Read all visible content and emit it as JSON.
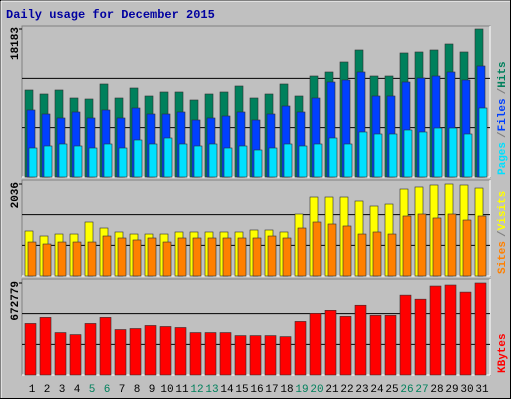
{
  "chart_data": [
    {
      "type": "bar",
      "title": "Daily usage for December 2015",
      "title_color": "#0000a0",
      "legend_separator": "/",
      "series": [
        {
          "name": "Hits",
          "color": "#00805c",
          "values": [
            10689,
            10197,
            10689,
            9706,
            9583,
            11426,
            9706,
            10934,
            9952,
            10443,
            10443,
            9460,
            10197,
            10443,
            11180,
            9706,
            10197,
            11426,
            9952,
            12409,
            12900,
            14129,
            15603,
            12409,
            12409,
            15235,
            15358,
            15603,
            16340,
            15358,
            18183
          ]
        },
        {
          "name": "Files",
          "color": "#0040ff",
          "values": [
            8232,
            7740,
            7249,
            7986,
            7249,
            8232,
            7249,
            8477,
            7740,
            7740,
            7986,
            7003,
            7249,
            7494,
            7986,
            7003,
            7740,
            8723,
            7986,
            9706,
            11672,
            11917,
            12900,
            9952,
            9952,
            11672,
            12163,
            12409,
            12900,
            11917,
            13637
          ]
        },
        {
          "name": "Pages",
          "color": "#00e0ff",
          "values": [
            3563,
            3809,
            4054,
            3809,
            3563,
            4054,
            3563,
            4546,
            4054,
            4792,
            4054,
            3809,
            4054,
            3563,
            3809,
            3317,
            3563,
            4054,
            3809,
            4054,
            4792,
            4054,
            5529,
            5283,
            5283,
            5774,
            5529,
            6020,
            6020,
            5283,
            8477
          ]
        }
      ],
      "ylim": [
        0,
        18183
      ],
      "yticks": [
        18183
      ]
    },
    {
      "type": "bar",
      "legend_separator": "/",
      "series": [
        {
          "name": "Visits",
          "color": "#ffff00",
          "values": [
            996,
            885,
            929,
            929,
            1195,
            1062,
            974,
            929,
            929,
            929,
            974,
            974,
            974,
            974,
            974,
            1018,
            1018,
            974,
            1372,
            1748,
            1748,
            1748,
            1660,
            1549,
            1593,
            1925,
            1970,
            2014,
            2036,
            2014,
            1947
          ]
        },
        {
          "name": "Sites",
          "color": "#ff8000",
          "values": [
            752,
            708,
            752,
            752,
            752,
            885,
            841,
            797,
            841,
            752,
            841,
            841,
            841,
            841,
            841,
            841,
            885,
            841,
            1062,
            1195,
            1151,
            1107,
            929,
            974,
            929,
            1328,
            1372,
            1284,
            1372,
            1239,
            1328
          ]
        }
      ],
      "ylim": [
        0,
        2036
      ],
      "yticks": [
        2036
      ]
    },
    {
      "type": "bar",
      "categories": [
        "1",
        "2",
        "3",
        "4",
        "5",
        "6",
        "7",
        "8",
        "9",
        "10",
        "11",
        "12",
        "13",
        "14",
        "15",
        "16",
        "17",
        "18",
        "19",
        "20",
        "21",
        "22",
        "23",
        "24",
        "25",
        "26",
        "27",
        "28",
        "29",
        "30",
        "31"
      ],
      "category_colors": [
        "#000000",
        "#000000",
        "#000000",
        "#000000",
        "#00805c",
        "#00805c",
        "#000000",
        "#000000",
        "#000000",
        "#000000",
        "#000000",
        "#00805c",
        "#00805c",
        "#000000",
        "#000000",
        "#000000",
        "#000000",
        "#000000",
        "#00805c",
        "#00805c",
        "#000000",
        "#000000",
        "#000000",
        "#000000",
        "#000000",
        "#00805c",
        "#00805c",
        "#000000",
        "#000000",
        "#000000",
        "#000000"
      ],
      "series": [
        {
          "name": "KBytes",
          "color": "#ff0000",
          "values": [
            377043,
            421401,
            310506,
            295720,
            377043,
            421401,
            332685,
            340078,
            362257,
            354864,
            347471,
            310506,
            310506,
            310506,
            288327,
            288327,
            288327,
            280934,
            391829,
            450973,
            473152,
            428794,
            510117,
            436187,
            436187,
            584047,
            554475,
            650584,
            657977,
            606226,
            672779
          ]
        }
      ],
      "ylim": [
        0,
        672779
      ],
      "yticks": [
        672779
      ]
    }
  ]
}
